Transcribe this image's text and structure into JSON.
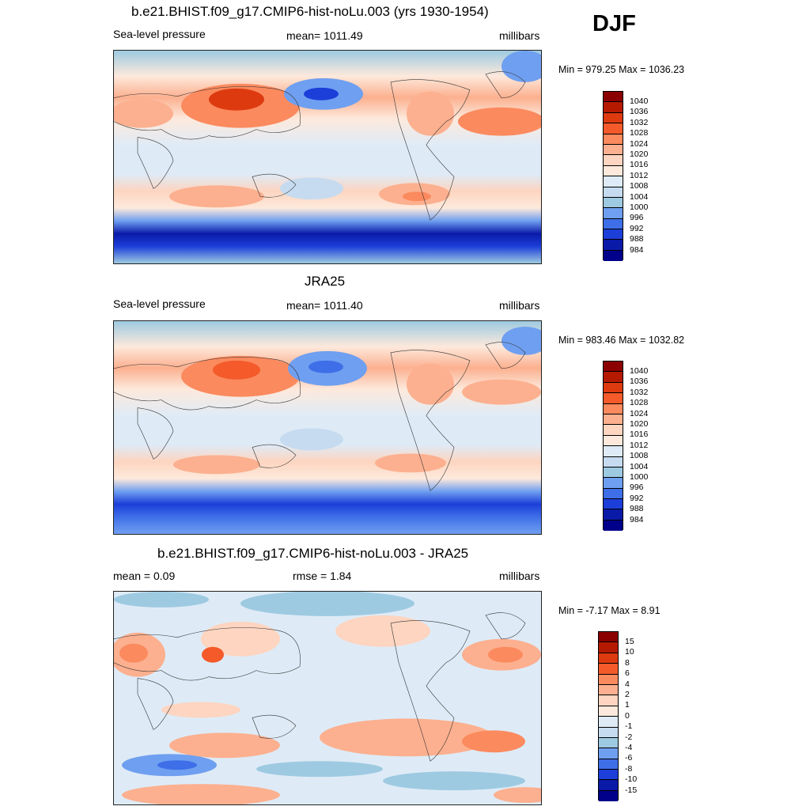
{
  "season": "DJF",
  "panels": [
    {
      "title": "b.e21.BHIST.f09_g17.CMIP6-hist-noLu.003 (yrs 1930-1954)",
      "left": "Sea-level pressure",
      "center": "mean= 1011.49",
      "right": "millibars",
      "minmax": "Min = 979.25 Max = 1036.23",
      "legend": {
        "labels": [
          "1040",
          "1036",
          "1032",
          "1028",
          "1024",
          "1020",
          "1016",
          "1012",
          "1008",
          "1004",
          "1000",
          "996",
          "992",
          "988",
          "984"
        ],
        "colors": [
          "#8b0000",
          "#b51a00",
          "#dd3a0f",
          "#f45a2a",
          "#fb8a5e",
          "#fcb08f",
          "#fdd5c0",
          "#fde9dc",
          "#deebf7",
          "#c6dbef",
          "#9ecae1",
          "#6f9ff0",
          "#3e6fe8",
          "#1c3ed9",
          "#0a1aa8",
          "#00008b"
        ]
      }
    },
    {
      "title": "JRA25",
      "left": "Sea-level pressure",
      "center": "mean= 1011.40",
      "right": "millibars",
      "minmax": "Min = 983.46 Max = 1032.82",
      "legend": {
        "labels": [
          "1040",
          "1036",
          "1032",
          "1028",
          "1024",
          "1020",
          "1016",
          "1012",
          "1008",
          "1004",
          "1000",
          "996",
          "992",
          "988",
          "984"
        ],
        "colors": [
          "#8b0000",
          "#b51a00",
          "#dd3a0f",
          "#f45a2a",
          "#fb8a5e",
          "#fcb08f",
          "#fdd5c0",
          "#fde9dc",
          "#deebf7",
          "#c6dbef",
          "#9ecae1",
          "#6f9ff0",
          "#3e6fe8",
          "#1c3ed9",
          "#0a1aa8",
          "#00008b"
        ]
      }
    },
    {
      "title": "b.e21.BHIST.f09_g17.CMIP6-hist-noLu.003 - JRA25",
      "left": "mean =   0.09",
      "center": "rmse =   1.84",
      "right": "millibars",
      "minmax": "Min =  -7.17 Max =   8.91",
      "legend": {
        "labels": [
          "15",
          "10",
          "8",
          "6",
          "4",
          "2",
          "1",
          "0",
          "-1",
          "-2",
          "-4",
          "-6",
          "-8",
          "-10",
          "-15"
        ],
        "colors": [
          "#8b0000",
          "#b51a00",
          "#dd3a0f",
          "#f45a2a",
          "#fb8a5e",
          "#fcb08f",
          "#fdd5c0",
          "#fde9dc",
          "#deebf7",
          "#c6dbef",
          "#9ecae1",
          "#6f9ff0",
          "#3e6fe8",
          "#1c3ed9",
          "#0a1aa8",
          "#00008b"
        ]
      }
    }
  ]
}
